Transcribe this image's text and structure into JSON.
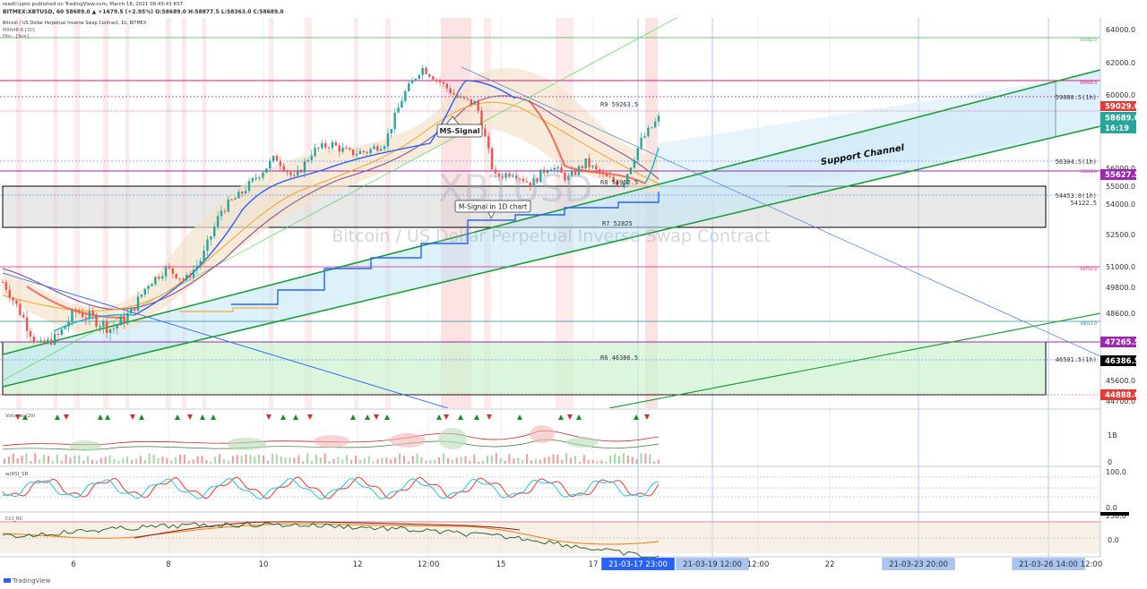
{
  "header": {
    "publish_line": "readCrypto published on TradingView.com, March 18, 2021 08:43:43 KST",
    "symbol_line": "BITMEX:XBTUSD, 60  58689.0 ▲ +1679.5 (+2.95%) O:58689.0 H:58877.5 L:58363.0 C:58689.0",
    "chart_title_line": "Bitcoin / US Dollar Perpetual Inverse Swap Contract, 1h, BITMEX",
    "indicator_1": "M9HAB-B [1D]",
    "indicator_2": "Fibs - [Year]"
  },
  "watermark": {
    "symbol": "XBTUSD",
    "description": "Bitcoin / US Dollar Perpetual Inverse Swap Contract"
  },
  "annotations": {
    "ms_signal": "MS-Signal",
    "m_signal": "M-Signal in 1D chart",
    "support_channel": "Support Channel"
  },
  "price_badges": {
    "current_price": "58689.0",
    "countdown": "16:19",
    "badge_59029": "59029.0",
    "badge_55627": "55627.5",
    "badge_47265": "47265.5",
    "badge_46386": "46386.5",
    "badge_44888": "44888.0"
  },
  "panes": {
    "volume_label": "Volume (20)",
    "rsi_label": "w|RSI_SB",
    "cci_label": "CCI_RC"
  },
  "footer": {
    "brand": "TradingView"
  },
  "colors": {
    "bull": "#26a69a",
    "bear": "#ef5350",
    "support": "#1e9e3a",
    "fib_pink": "#e2197b",
    "purple": "#9c27b0",
    "blue": "#2962ff",
    "time_badge": "#2962ff"
  },
  "chart_data": {
    "type": "line",
    "title": "Bitcoin / US Dollar Perpetual Inverse Swap Contract, 1h, BITMEX",
    "y_axis": {
      "ticks": [
        44700,
        45600,
        46500,
        47600,
        48600,
        49800,
        51000,
        52500,
        54000,
        55000,
        56000,
        58000,
        60000,
        62000,
        64000
      ],
      "tick_labels": [
        "44700.0",
        "45600.0",
        "46500.0",
        "47600.0",
        "48600.0",
        "49800.0",
        "51000.0",
        "52500.0",
        "54000.0",
        "55000.0",
        "56000.0",
        "58000.0",
        "60000.0",
        "62000.0",
        "64000.0"
      ],
      "range": [
        44400,
        65200
      ]
    },
    "x_axis": {
      "labels": [
        "6",
        "8",
        "10",
        "12",
        "12:00",
        "15",
        "17",
        "21-03-17   23:00",
        "21-03-19   12:00",
        "12:00",
        "22",
        "21-03-23   20:00",
        "21-03-26   14:00",
        "12:00"
      ],
      "highlighted": [
        "21-03-17   23:00",
        "21-03-19   12:00",
        "21-03-23   20:00",
        "21-03-26   14:00"
      ]
    },
    "close_series": [
      {
        "date": "Mar 4 12:00",
        "close": 50100
      },
      {
        "date": "Mar 5 00:00",
        "close": 48600
      },
      {
        "date": "Mar 5 06:00",
        "close": 47300
      },
      {
        "date": "Mar 5 18:00",
        "close": 47700
      },
      {
        "date": "Mar 6 00:00",
        "close": 48700
      },
      {
        "date": "Mar 6 12:00",
        "close": 48400
      },
      {
        "date": "Mar 7 00:00",
        "close": 48000
      },
      {
        "date": "Mar 7 06:00",
        "close": 48600
      },
      {
        "date": "Mar 7 18:00",
        "close": 50000
      },
      {
        "date": "Mar 8 00:00",
        "close": 50900
      },
      {
        "date": "Mar 8 12:00",
        "close": 50200
      },
      {
        "date": "Mar 9 00:00",
        "close": 51500
      },
      {
        "date": "Mar 9 12:00",
        "close": 53700
      },
      {
        "date": "Mar 10 00:00",
        "close": 54500
      },
      {
        "date": "Mar 10 12:00",
        "close": 55600
      },
      {
        "date": "Mar 11 00:00",
        "close": 56600
      },
      {
        "date": "Mar 11 12:00",
        "close": 55400
      },
      {
        "date": "Mar 12 00:00",
        "close": 56900
      },
      {
        "date": "Mar 12 12:00",
        "close": 57300
      },
      {
        "date": "Mar 13 00:00",
        "close": 56800
      },
      {
        "date": "Mar 13 12:00",
        "close": 56900
      },
      {
        "date": "Mar 13 18:00",
        "close": 57400
      },
      {
        "date": "Mar 14 00:00",
        "close": 60000
      },
      {
        "date": "Mar 14 04:00",
        "close": 61700
      },
      {
        "date": "Mar 14 12:00",
        "close": 60800
      },
      {
        "date": "Mar 15 00:00",
        "close": 59800
      },
      {
        "date": "Mar 15 06:00",
        "close": 59500
      },
      {
        "date": "Mar 15 12:00",
        "close": 55500
      },
      {
        "date": "Mar 15 20:00",
        "close": 55800
      },
      {
        "date": "Mar 16 06:00",
        "close": 55100
      },
      {
        "date": "Mar 16 12:00",
        "close": 56200
      },
      {
        "date": "Mar 16 22:00",
        "close": 55400
      },
      {
        "date": "Mar 17 06:00",
        "close": 56300
      },
      {
        "date": "Mar 17 12:00",
        "close": 55500
      },
      {
        "date": "Mar 17 18:00",
        "close": 55100
      },
      {
        "date": "Mar 17 22:00",
        "close": 57400
      },
      {
        "date": "Mar 17 23:00",
        "close": 58689
      }
    ],
    "horizontal_levels": [
      {
        "label": "63482.0",
        "value": 63482
      },
      {
        "label": "60904.0",
        "value": 60904
      },
      {
        "label": "59880.5(1h)",
        "value": 59880.5
      },
      {
        "label": "R9 59263.5",
        "value": 59263.5
      },
      {
        "label": "56304.5(1h)",
        "value": 56304.5
      },
      {
        "label": "55614.0",
        "value": 55614
      },
      {
        "label": "R8 54962.5",
        "value": 54962.5
      },
      {
        "label": "54453.0(1h)",
        "value": 54453
      },
      {
        "label": "54122.5",
        "value": 54122.5
      },
      {
        "label": "R7 52825",
        "value": 52825
      },
      {
        "label": "50752.0",
        "value": 50752
      },
      {
        "label": "48014.0",
        "value": 48014
      },
      {
        "label": "R6 46386.5",
        "value": 46386.5
      },
      {
        "label": "46501.5(1h)",
        "value": 46501.5
      }
    ],
    "volume_axis": {
      "tick_labels": [
        "1B",
        "0"
      ]
    },
    "rsi_axis": {
      "tick_labels": [
        "100.0",
        "0.0"
      ],
      "range": [
        0,
        100
      ]
    },
    "cci_axis": {
      "tick_labels": [
        "250.0",
        "0.0"
      ]
    }
  }
}
